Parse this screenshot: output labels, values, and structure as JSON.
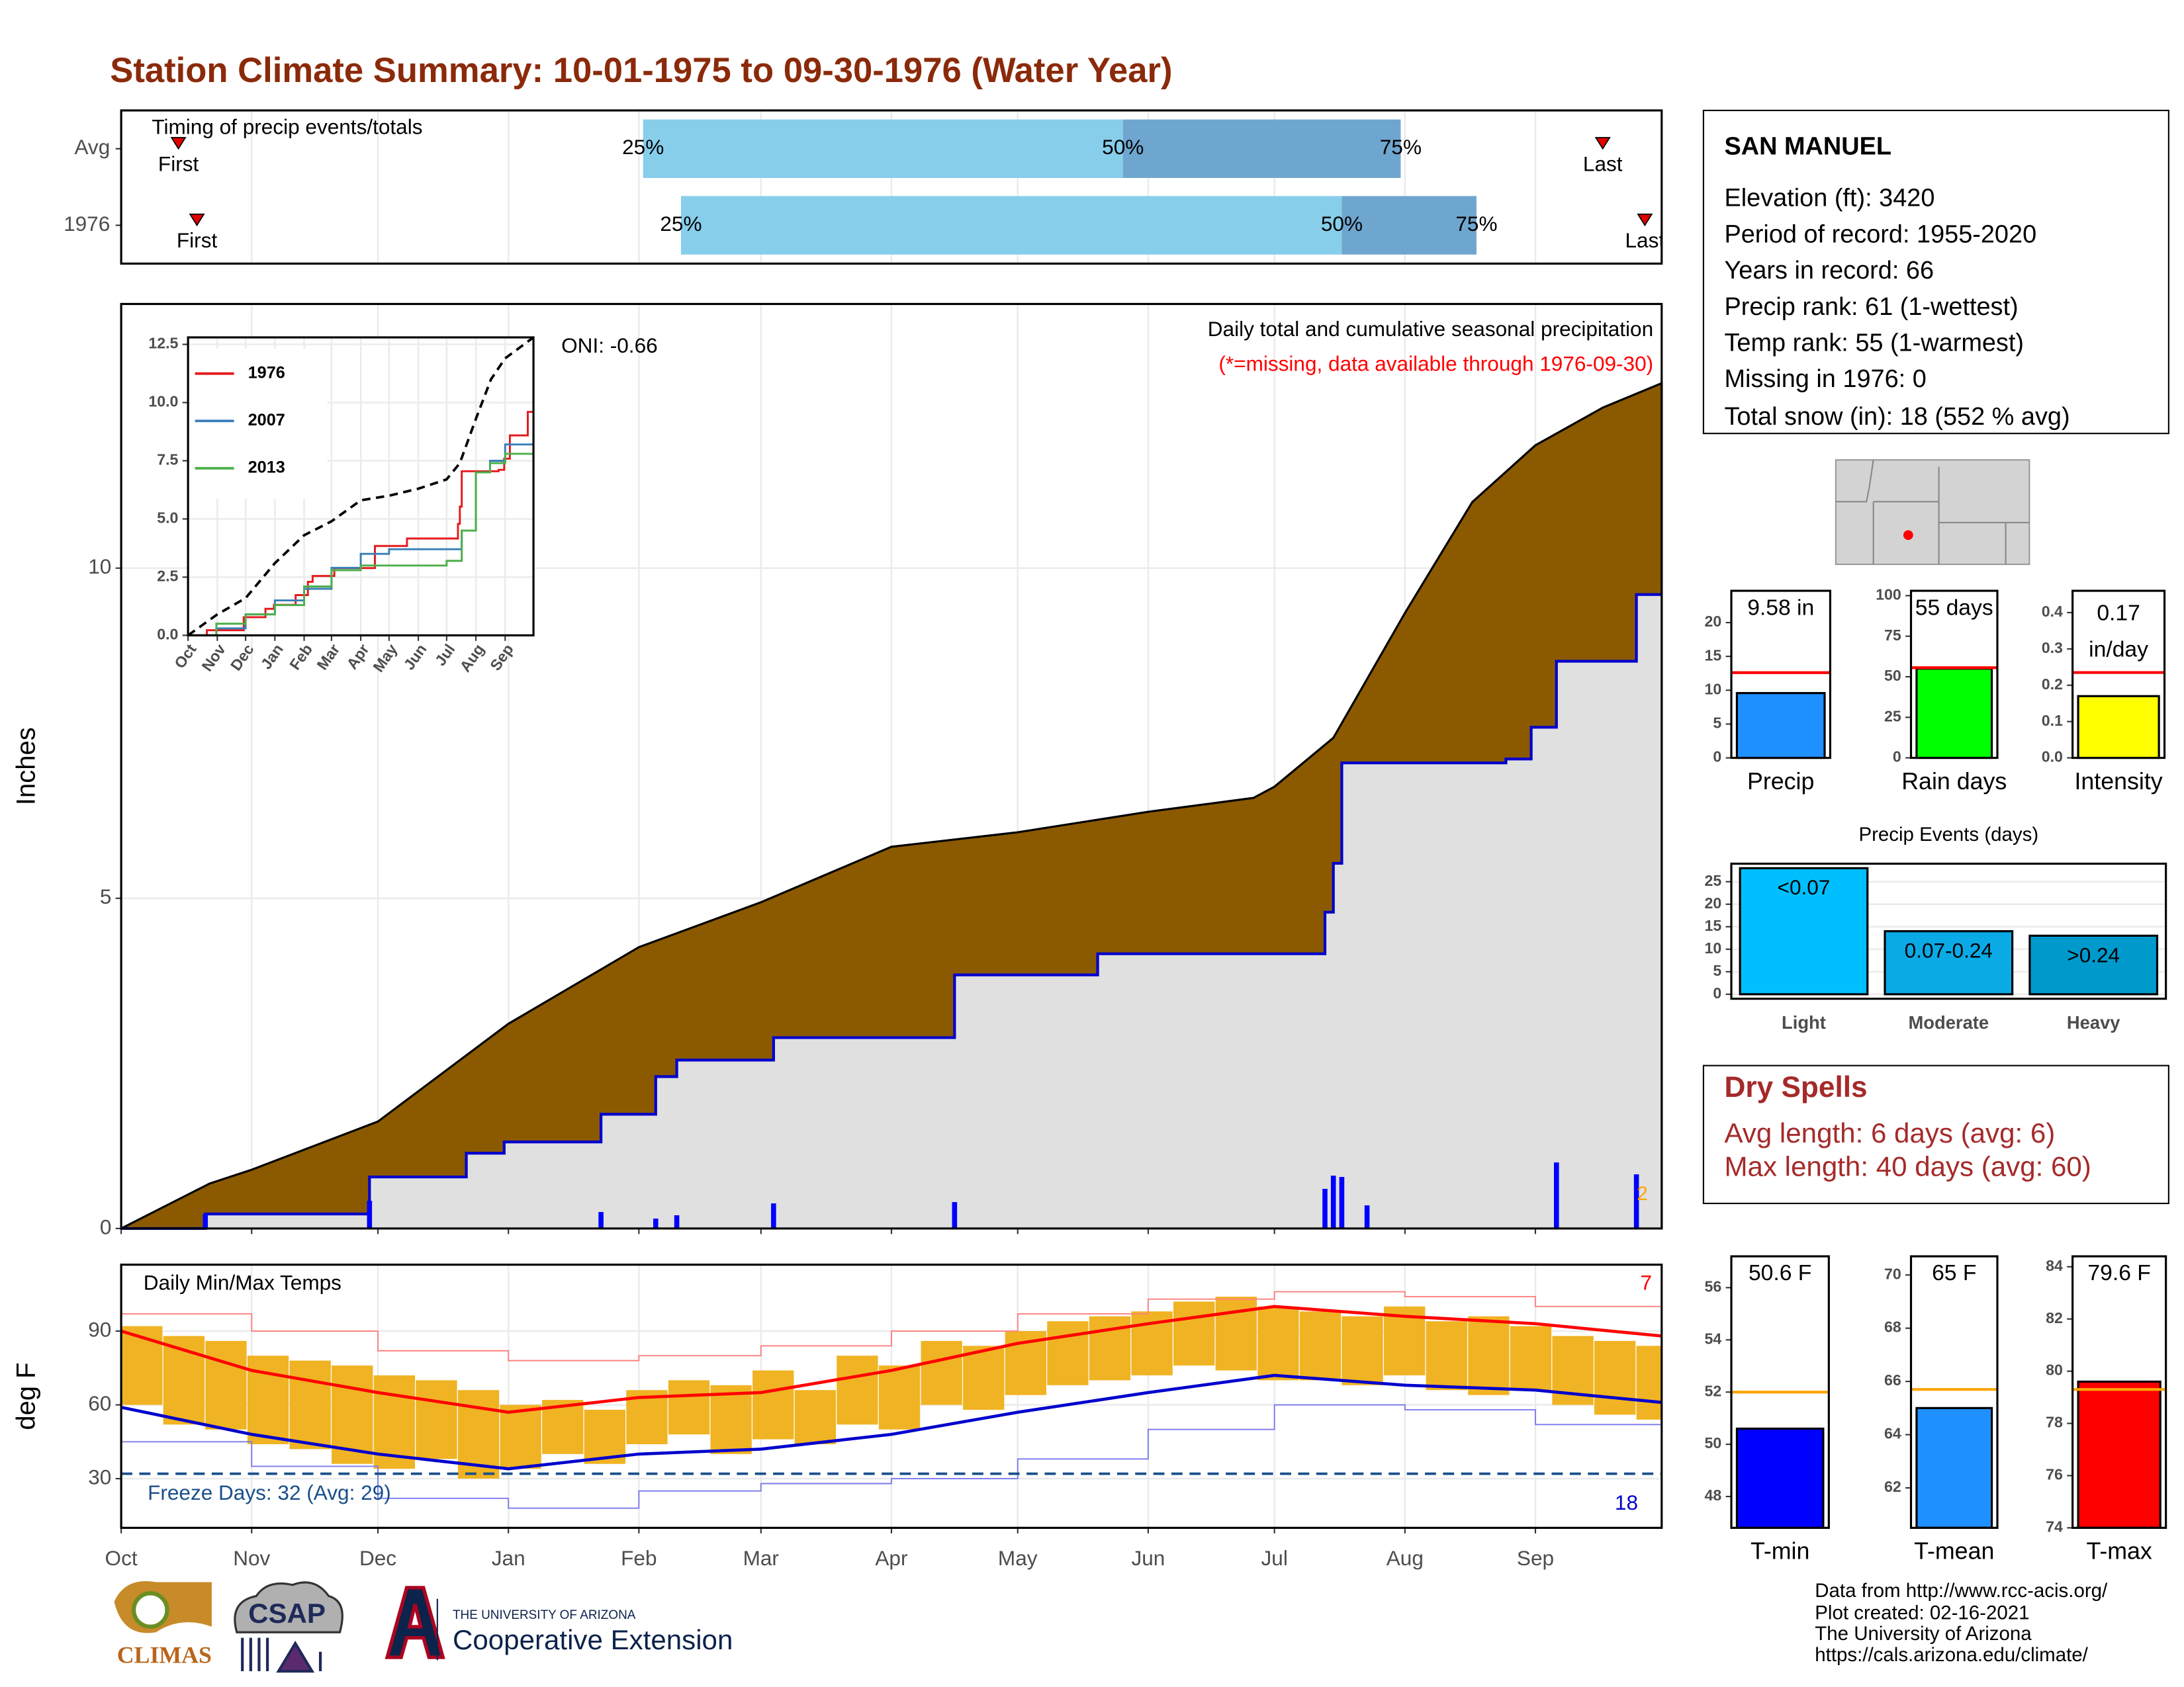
{
  "title": "Station Climate Summary: 10-01-1975 to 09-30-1976 (Water Year)",
  "station": {
    "name": "SAN MANUEL",
    "lines": [
      "Elevation (ft): 3420",
      "Period of record: 1955-2020",
      "Years in record: 66",
      "Precip rank: 61 (1-wettest)",
      "Temp rank: 55 (1-warmest)",
      "Missing in 1976: 0",
      "Total snow (in): 18 (552 % avg)"
    ]
  },
  "dry_spells": {
    "title": "Dry Spells",
    "lines": [
      "Avg length: 6 days (avg: 6)",
      "Max length: 40 days (avg: 60)"
    ]
  },
  "footer": [
    "Data from http://www.rcc-acis.org/",
    "Plot created: 02-16-2021",
    "The University of Arizona",
    "https://cals.arizona.edu/climate/"
  ],
  "logos": {
    "climas": "CLIMAS",
    "csap": "CSAP",
    "university": "THE UNIVERSITY OF ARIZONA",
    "extension": "Cooperative Extension"
  },
  "chart_data": [
    {
      "type": "timing",
      "title": "Timing of precip events/totals",
      "categories": [
        "Avg",
        "1976"
      ],
      "xlim": [
        0,
        366
      ],
      "xticks": [
        0,
        31,
        61,
        92,
        123,
        152,
        183,
        213,
        244,
        274,
        305,
        336
      ],
      "grid": true,
      "first": [
        13.6,
        18
      ],
      "q25": [
        124,
        133
      ],
      "q50": [
        238,
        290
      ],
      "q75": [
        304,
        322
      ],
      "last": [
        352,
        362
      ],
      "first_label": "First",
      "last_label": "Last",
      "q_labels": [
        "25%",
        "50%",
        "75%"
      ],
      "colors": [
        "#87ceeb",
        "#6fa6cf"
      ],
      "marker_color": "#e00000"
    },
    {
      "type": "cumulative",
      "ylabel": "Inches",
      "ylim": [
        0,
        14
      ],
      "yticks": [
        0,
        5,
        10
      ],
      "xlim": [
        0,
        366
      ],
      "xticks": [
        0,
        31,
        61,
        92,
        123,
        152,
        183,
        213,
        244,
        274,
        305,
        336
      ],
      "grid": true,
      "series": [
        {
          "color": "#8b5a00",
          "x": [
            0,
            21,
            31,
            61,
            92,
            123,
            152,
            183,
            213,
            244,
            269,
            274,
            288,
            305,
            321,
            336,
            352,
            366
          ],
          "values": [
            0,
            0.68,
            0.89,
            1.62,
            3.1,
            4.26,
            4.94,
            5.78,
            6.0,
            6.31,
            6.52,
            6.69,
            7.43,
            9.32,
            11.0,
            11.86,
            12.43,
            12.8
          ]
        },
        {
          "color": "#0000cd",
          "fill": "#e0e0e0",
          "x": [
            0,
            20,
            59,
            82,
            91,
            114,
            127,
            132,
            155,
            198,
            232,
            286,
            288,
            290,
            329,
            335,
            341,
            360,
            366
          ],
          "values": [
            0,
            0.22,
            0.78,
            1.14,
            1.31,
            1.73,
            2.3,
            2.55,
            2.89,
            3.84,
            4.16,
            4.79,
            5.53,
            7.05,
            7.11,
            7.59,
            8.59,
            9.6,
            9.6
          ]
        }
      ],
      "bars": {
        "color": "#0000ff",
        "x": [
          20,
          59,
          114,
          127,
          132,
          155,
          198,
          286,
          288,
          290,
          296,
          341,
          360
        ],
        "values": [
          0.22,
          0.42,
          0.25,
          0.15,
          0.2,
          0.38,
          0.4,
          0.6,
          0.8,
          0.78,
          0.35,
          1.0,
          0.82
        ]
      },
      "annotations": [
        {
          "text": "ONI: -0.66"
        },
        {
          "text": "Daily total and cumulative seasonal precipitation"
        },
        {
          "text": "(*=missing, data available through 1976-09-30)",
          "color": "#ff0000"
        },
        {
          "text": "2",
          "color": "#ffa500"
        }
      ]
    },
    {
      "type": "line",
      "xlim": [
        0,
        366
      ],
      "ylim": [
        0,
        12.8
      ],
      "grid": true,
      "xticks": [
        {
          "value": 0,
          "label": "Oct"
        },
        {
          "value": 31,
          "label": "Nov"
        },
        {
          "value": 61,
          "label": "Dec"
        },
        {
          "value": 92,
          "label": "Jan"
        },
        {
          "value": 123,
          "label": "Feb"
        },
        {
          "value": 152,
          "label": "Mar"
        },
        {
          "value": 183,
          "label": "Apr"
        },
        {
          "value": 213,
          "label": "May"
        },
        {
          "value": 244,
          "label": "Jun"
        },
        {
          "value": 274,
          "label": "Jul"
        },
        {
          "value": 305,
          "label": "Aug"
        },
        {
          "value": 336,
          "label": "Sep"
        }
      ],
      "yticks": [
        {
          "value": 0,
          "label": "0.0"
        },
        2.5,
        {
          "value": 5,
          "label": "5.0"
        },
        7.5,
        {
          "value": 10,
          "label": "10.0"
        },
        12.5
      ],
      "series": [
        {
          "name": "1976",
          "color": "#e41a1c",
          "x": [
            0,
            20,
            59,
            82,
            91,
            114,
            127,
            132,
            155,
            198,
            232,
            286,
            288,
            290,
            329,
            335,
            341,
            360,
            366
          ],
          "values": [
            0,
            0.22,
            0.78,
            1.14,
            1.31,
            1.73,
            2.3,
            2.55,
            2.89,
            3.84,
            4.16,
            4.79,
            5.53,
            7.05,
            7.11,
            7.59,
            8.59,
            9.6,
            9.6
          ]
        },
        {
          "name": "2007",
          "color": "#377eb8",
          "x": [
            0,
            30,
            61,
            92,
            123,
            152,
            183,
            213,
            244,
            274,
            290,
            305,
            320,
            336,
            366
          ],
          "values": [
            0,
            0.3,
            0.9,
            1.5,
            2.0,
            2.9,
            3.5,
            3.7,
            3.7,
            3.7,
            4.5,
            7.0,
            7.5,
            8.2,
            8.9
          ]
        },
        {
          "name": "2013",
          "color": "#4daf4a",
          "x": [
            0,
            30,
            61,
            92,
            123,
            152,
            183,
            213,
            244,
            274,
            290,
            305,
            320,
            336,
            366
          ],
          "values": [
            0,
            0.5,
            0.9,
            1.3,
            2.1,
            2.8,
            3.0,
            3.0,
            3.0,
            3.2,
            4.5,
            7.0,
            7.4,
            7.8,
            8.4
          ]
        },
        {
          "color": "#000000",
          "dash": true,
          "x": [
            0,
            31,
            61,
            92,
            123,
            152,
            183,
            213,
            244,
            274,
            288,
            305,
            321,
            336,
            366
          ],
          "values": [
            0,
            0.9,
            1.6,
            3.1,
            4.3,
            4.9,
            5.8,
            6.0,
            6.3,
            6.7,
            7.4,
            9.3,
            11.0,
            11.9,
            12.8
          ]
        }
      ]
    },
    {
      "type": "temperature",
      "ylabel": "deg F",
      "ylim": [
        10,
        117
      ],
      "yticks": [
        30,
        60,
        90
      ],
      "xlim": [
        0,
        366
      ],
      "grid": true,
      "xticks": [
        {
          "value": 0,
          "label": "Oct"
        },
        {
          "value": 31,
          "label": "Nov"
        },
        {
          "value": 61,
          "label": "Dec"
        },
        {
          "value": 92,
          "label": "Jan"
        },
        {
          "value": 123,
          "label": "Feb"
        },
        {
          "value": 152,
          "label": "Mar"
        },
        {
          "value": 183,
          "label": "Apr"
        },
        {
          "value": 213,
          "label": "May"
        },
        {
          "value": 244,
          "label": "Jun"
        },
        {
          "value": 274,
          "label": "Jul"
        },
        {
          "value": 305,
          "label": "Aug"
        },
        {
          "value": 336,
          "label": "Sep"
        }
      ],
      "freeze": 32,
      "freeze_color": "#1a4f8b",
      "series": [
        {
          "kind": "band-top",
          "color": "#f0b323",
          "x": [
            0,
            10,
            20,
            30,
            40,
            50,
            60,
            70,
            80,
            90,
            100,
            110,
            120,
            130,
            140,
            150,
            160,
            170,
            180,
            190,
            200,
            210,
            220,
            230,
            240,
            250,
            260,
            270,
            280,
            290,
            300,
            310,
            320,
            330,
            340,
            350,
            360
          ],
          "values": [
            92,
            88,
            86,
            80,
            78,
            76,
            72,
            70,
            66,
            60,
            62,
            58,
            66,
            70,
            68,
            74,
            66,
            80,
            76,
            86,
            84,
            90,
            94,
            96,
            98,
            102,
            104,
            100,
            98,
            96,
            100,
            94,
            96,
            92,
            88,
            86,
            84
          ]
        },
        {
          "kind": "band-bottom",
          "color": "#f0b323",
          "x": [
            0,
            10,
            20,
            30,
            40,
            50,
            60,
            70,
            80,
            90,
            100,
            110,
            120,
            130,
            140,
            150,
            160,
            170,
            180,
            190,
            200,
            210,
            220,
            230,
            240,
            250,
            260,
            270,
            280,
            290,
            300,
            310,
            320,
            330,
            340,
            350,
            360
          ],
          "values": [
            60,
            52,
            50,
            44,
            42,
            36,
            34,
            38,
            30,
            34,
            40,
            36,
            44,
            48,
            40,
            46,
            44,
            52,
            50,
            60,
            58,
            64,
            68,
            70,
            72,
            76,
            74,
            70,
            70,
            68,
            72,
            66,
            64,
            66,
            60,
            56,
            54
          ]
        },
        {
          "kind": "line",
          "color": "#ff0000",
          "x": [
            0,
            31,
            61,
            92,
            123,
            152,
            183,
            213,
            244,
            274,
            305,
            336,
            366
          ],
          "values": [
            90,
            74,
            65,
            57,
            63,
            65,
            74,
            85,
            93,
            100,
            96,
            93,
            88
          ]
        },
        {
          "kind": "line",
          "color": "#0000cd",
          "x": [
            0,
            31,
            61,
            92,
            123,
            152,
            183,
            213,
            244,
            274,
            305,
            336,
            366
          ],
          "values": [
            59,
            48,
            40,
            34,
            40,
            42,
            48,
            57,
            65,
            72,
            68,
            66,
            61
          ]
        },
        {
          "kind": "thin",
          "color": "#ff8080",
          "x": [
            0,
            31,
            61,
            92,
            123,
            152,
            183,
            213,
            244,
            274,
            305,
            336,
            366
          ],
          "values": [
            97,
            90,
            82,
            78,
            80,
            84,
            90,
            97,
            103,
            106,
            104,
            100,
            95
          ]
        },
        {
          "kind": "thin",
          "color": "#7b7bee",
          "x": [
            0,
            31,
            61,
            92,
            123,
            152,
            183,
            213,
            244,
            274,
            305,
            336,
            366
          ],
          "values": [
            45,
            35,
            22,
            18,
            25,
            28,
            30,
            38,
            50,
            60,
            58,
            52,
            48
          ]
        }
      ],
      "annotations": [
        {
          "text": "Daily Min/Max Temps"
        },
        {
          "text": "7",
          "color": "#ff0000"
        },
        {
          "text": "18",
          "color": "#0000cd"
        },
        {
          "text": "Freeze Days: 32 (Avg: 29)",
          "color": "#1a4f8b"
        }
      ]
    },
    {
      "type": "bar",
      "categories": [
        "Precip"
      ],
      "values": [
        9.58
      ],
      "value_labels": [
        "9.58 in"
      ],
      "color": "#1e90ff",
      "average": 12.6,
      "average_color": "#ff0000",
      "ylim": [
        0,
        24.7
      ],
      "yticks": [
        0,
        5,
        10,
        15,
        20
      ]
    },
    {
      "type": "bar",
      "categories": [
        "Rain days"
      ],
      "values": [
        55
      ],
      "value_labels": [
        "55 days"
      ],
      "color": "#00ff00",
      "average": 55.6,
      "average_color": "#ff0000",
      "ylim": [
        0,
        103
      ],
      "yticks": [
        0,
        25,
        50,
        75,
        100
      ]
    },
    {
      "type": "bar",
      "categories": [
        "Intensity"
      ],
      "values": [
        0.17
      ],
      "value_labels": [
        "0.17"
      ],
      "unit_label": "in/day",
      "color": "#ffff00",
      "average": 0.235,
      "average_color": "#ff0000",
      "ylim": [
        0,
        0.46
      ],
      "yticks": [
        {
          "value": 0,
          "label": "0.0"
        },
        0.1,
        0.2,
        0.3,
        0.4
      ]
    },
    {
      "type": "bar",
      "title": "Precip Events (days)",
      "categories": [
        "Light",
        "Moderate",
        "Heavy"
      ],
      "values": [
        28,
        14,
        13
      ],
      "bar_labels": [
        "<0.07",
        "0.07-0.24",
        ">0.24"
      ],
      "colors": [
        "#00bfff",
        "#0aaae6",
        "#0099cc"
      ],
      "ylim": [
        -1,
        29
      ],
      "yticks": [
        0,
        5,
        10,
        15,
        20,
        25
      ],
      "grid": true
    },
    {
      "type": "bar",
      "categories": [
        "T-min"
      ],
      "values": [
        50.6
      ],
      "value_labels": [
        "50.6 F"
      ],
      "color": "#0000ff",
      "average": 52.0,
      "average_color": "#ffa500",
      "ylim": [
        46.8,
        57.2
      ],
      "yticks": [
        48,
        50,
        52,
        54,
        56
      ]
    },
    {
      "type": "bar",
      "categories": [
        "T-mean"
      ],
      "values": [
        65
      ],
      "value_labels": [
        "65 F"
      ],
      "color": "#1e90ff",
      "average": 65.7,
      "average_color": "#ffa500",
      "ylim": [
        60.5,
        70.7
      ],
      "yticks": [
        62,
        64,
        66,
        68,
        70
      ]
    },
    {
      "type": "bar",
      "categories": [
        "T-max"
      ],
      "values": [
        79.6
      ],
      "value_labels": [
        "79.6 F"
      ],
      "color": "#ff0000",
      "average": 79.3,
      "average_color": "#ffa500",
      "ylim": [
        74,
        84.4
      ],
      "yticks": [
        74,
        76,
        78,
        80,
        82,
        84
      ]
    }
  ]
}
